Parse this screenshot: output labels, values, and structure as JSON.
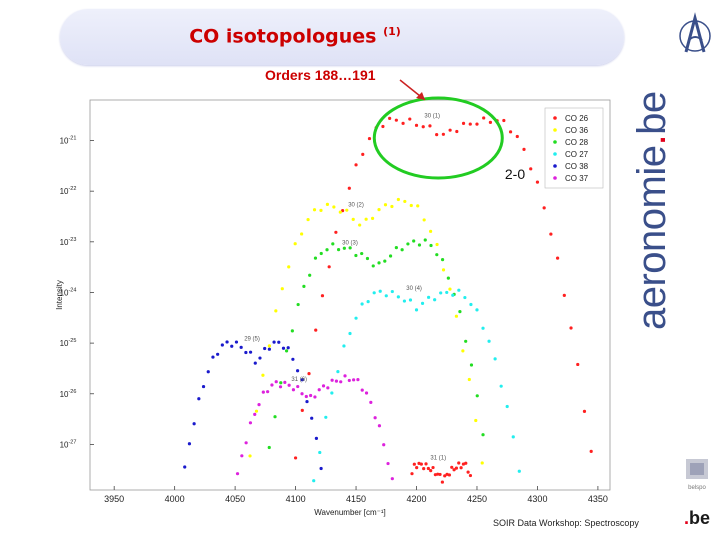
{
  "header": {
    "title": "CO isotopologues",
    "title_ref": "(1)",
    "subtitle": "Orders 188…191"
  },
  "brand": {
    "name_part1": "aeronomie",
    "name_dot": ".",
    "name_part2": "be"
  },
  "footer": {
    "text": "SOIR Data Workshop: Spectroscopy",
    "logo_dot": ".",
    "logo_text": "be",
    "emblem_text": "belspo"
  },
  "colors": {
    "CO 26": "#ff2020",
    "CO 36": "#ffff00",
    "CO 28": "#22dd22",
    "CO 27": "#22eeee",
    "CO 38": "#1a1acc",
    "CO 37": "#dd22dd",
    "highlight": "#22cc22",
    "arrow": "#cc2222",
    "brand": "#3a4f8a"
  },
  "chart_data": {
    "type": "scatter",
    "xlabel": "Wavenumber [cm⁻¹]",
    "ylabel": "Intensity",
    "xlim": [
      3930,
      4360
    ],
    "ylim": [
      -27.9,
      -20.2
    ],
    "y_scale": "log",
    "x_ticks": [
      3950,
      4000,
      4050,
      4100,
      4150,
      4200,
      4250,
      4300,
      4350
    ],
    "y_ticks": [
      {
        "value": -21,
        "base": "10",
        "exp": "-21"
      },
      {
        "value": -22,
        "base": "10",
        "exp": "-22"
      },
      {
        "value": -23,
        "base": "10",
        "exp": "-23"
      },
      {
        "value": -24,
        "base": "10",
        "exp": "-24"
      },
      {
        "value": -25,
        "base": "10",
        "exp": "-25"
      },
      {
        "value": -26,
        "base": "10",
        "exp": "-26"
      },
      {
        "value": -27,
        "base": "10",
        "exp": "-27"
      }
    ],
    "legend_position": "top-right",
    "band_label": "2-0",
    "series": [
      {
        "name": "CO 26",
        "peaks": [
          [
            4180,
            -20.6
          ],
          [
            4265,
            -20.6
          ]
        ],
        "dip": [
          4222,
          -20.9
        ],
        "start": 4100,
        "end": 4350,
        "edge": -28.5,
        "width": 48
      },
      {
        "name": "CO 36",
        "peaks": [
          [
            4125,
            -22.3
          ],
          [
            4190,
            -22.2
          ]
        ],
        "dip": [
          4155,
          -22.7
        ],
        "start": 4025,
        "end": 4265,
        "edge": -28.5,
        "width": 44
      },
      {
        "name": "CO 28",
        "peaks": [
          [
            4130,
            -23.1
          ],
          [
            4205,
            -23.0
          ]
        ],
        "dip": [
          4168,
          -23.5
        ],
        "start": 4040,
        "end": 4255,
        "edge": -28.5,
        "width": 40
      },
      {
        "name": "CO 27",
        "peaks": [
          [
            4170,
            -24.0
          ],
          [
            4232,
            -24.0
          ]
        ],
        "dip": [
          4200,
          -24.3
        ],
        "start": 4075,
        "end": 4300,
        "edge": -28.5,
        "width": 44
      },
      {
        "name": "CO 38",
        "peaks": [
          [
            4045,
            -25.0
          ],
          [
            4085,
            -25.0
          ]
        ],
        "dip": [
          4068,
          -25.4
        ],
        "start": 3950,
        "end": 4125,
        "edge": -28.5,
        "width": 36
      },
      {
        "name": "CO 37",
        "peaks": [
          [
            4085,
            -25.8
          ],
          [
            4145,
            -25.7
          ]
        ],
        "dip": [
          4112,
          -26.1
        ],
        "start": 4020,
        "end": 4180,
        "edge": -28.5,
        "width": 38
      },
      {
        "name": "CO 26 (order 31)",
        "peaks": [
          [
            4200,
            -27.4
          ],
          [
            4240,
            -27.4
          ]
        ],
        "dip": [
          4222,
          -27.7
        ],
        "start": 4175,
        "end": 4262,
        "edge": -28.5,
        "width": 14,
        "color_of": "CO 26"
      }
    ],
    "annotations": [
      {
        "text": "30 (1)",
        "x": 4213,
        "y": -20.55
      },
      {
        "text": "30 (2)",
        "x": 4150,
        "y": -22.3
      },
      {
        "text": "30 (3)",
        "x": 4145,
        "y": -23.05
      },
      {
        "text": "30 (4)",
        "x": 4198,
        "y": -23.95
      },
      {
        "text": "29 (5)",
        "x": 4064,
        "y": -24.95
      },
      {
        "text": "31 (6)",
        "x": 4103,
        "y": -25.75
      },
      {
        "text": "31 (1)",
        "x": 4218,
        "y": -27.3
      }
    ]
  }
}
